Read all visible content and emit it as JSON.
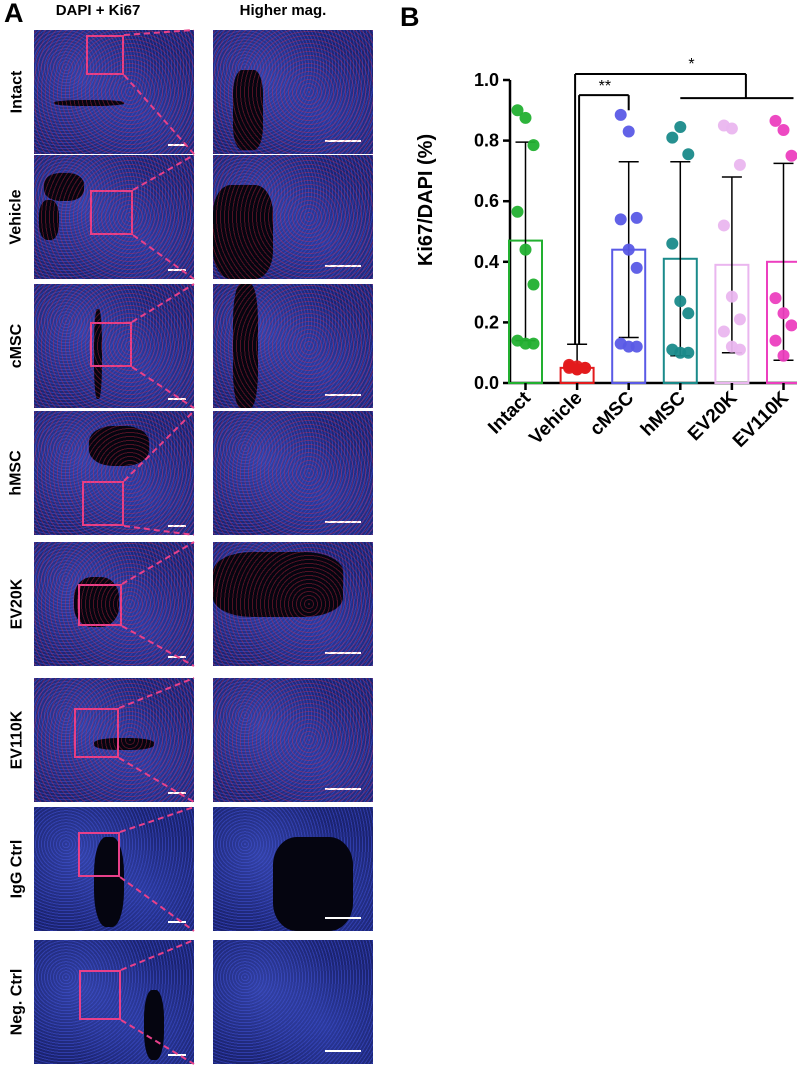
{
  "panel_a": {
    "letter": "A",
    "col_headers": [
      "DAPI + Ki67",
      "Higher mag."
    ],
    "rows": [
      {
        "label": "Intact"
      },
      {
        "label": "Vehicle"
      },
      {
        "label": "cMSC"
      },
      {
        "label": "hMSC"
      },
      {
        "label": "EV20K"
      },
      {
        "label": "EV110K"
      },
      {
        "label": "IgG Ctrl"
      },
      {
        "label": "Neg. Ctrl"
      }
    ]
  },
  "panel_b": {
    "letter": "B"
  },
  "chart_data": {
    "type": "bar",
    "ylabel": "Ki67/DAPI (%)",
    "ylim": [
      0,
      1.0
    ],
    "yticks": [
      "0.0",
      "0.2",
      "0.4",
      "0.6",
      "0.8",
      "1.0"
    ],
    "categories": [
      "Intact",
      "Vehicle",
      "cMSC",
      "hMSC",
      "EV20K",
      "EV110K"
    ],
    "colors": [
      "#22b030",
      "#e31a1c",
      "#5a5ae6",
      "#1a8a8a",
      "#eab6ef",
      "#ec3fbf"
    ],
    "means": [
      0.47,
      0.05,
      0.44,
      0.41,
      0.39,
      0.4
    ],
    "error_upper": [
      0.795,
      0.128,
      0.73,
      0.73,
      0.68,
      0.725
    ],
    "error_lower": [
      0.14,
      0.04,
      0.15,
      0.09,
      0.1,
      0.075
    ],
    "points": [
      [
        0.9,
        0.875,
        0.785,
        0.565,
        0.44,
        0.325,
        0.14,
        0.13,
        0.13
      ],
      [
        0.06,
        0.055,
        0.05,
        0.05,
        0.045,
        0.05,
        0.055,
        0.045
      ],
      [
        0.885,
        0.83,
        0.545,
        0.54,
        0.44,
        0.38,
        0.13,
        0.12,
        0.12
      ],
      [
        0.81,
        0.845,
        0.755,
        0.46,
        0.27,
        0.23,
        0.11,
        0.1,
        0.1
      ],
      [
        0.85,
        0.84,
        0.72,
        0.52,
        0.285,
        0.21,
        0.17,
        0.12,
        0.11
      ],
      [
        0.865,
        0.835,
        0.75,
        0.28,
        0.23,
        0.19,
        0.14,
        0.09
      ]
    ],
    "significance": [
      "**",
      "*"
    ]
  }
}
